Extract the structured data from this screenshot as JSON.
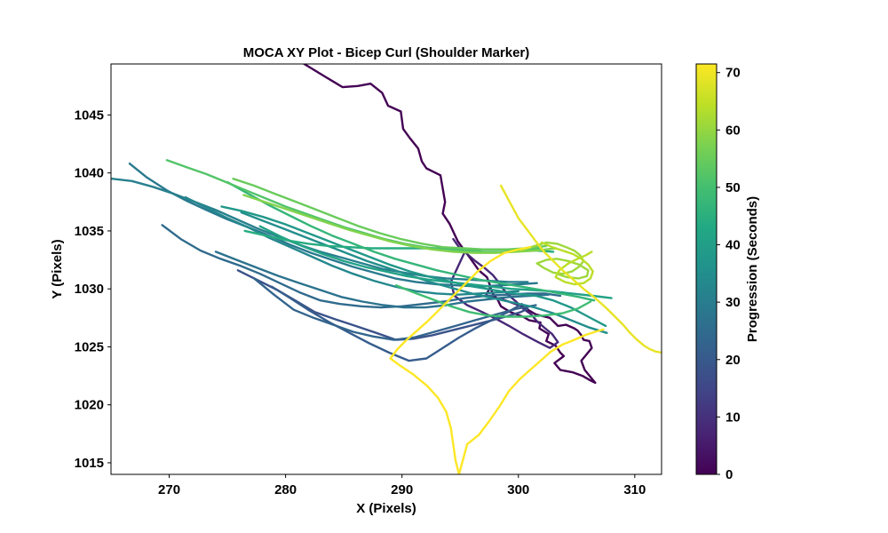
{
  "chart_data": {
    "type": "line",
    "title": "MOCA XY Plot - Bicep Curl (Shoulder Marker)",
    "xlabel": "X (Pixels)",
    "ylabel": "Y (Pixels)",
    "colorbar_label": "Progression (Seconds)",
    "xlim": [
      265,
      312.3
    ],
    "ylim": [
      1014,
      1049.4
    ],
    "x_ticks": [
      270,
      280,
      290,
      300,
      310
    ],
    "y_ticks": [
      1015,
      1020,
      1025,
      1030,
      1035,
      1040,
      1045
    ],
    "colorbar_lim": [
      0,
      71.5
    ],
    "colorbar_ticks": [
      0,
      10,
      20,
      30,
      40,
      50,
      60,
      70
    ],
    "colormap": "viridis",
    "grid": false,
    "series": [
      {
        "t": 0,
        "x": [
          281.6,
          283.4,
          284.9,
          286.2,
          287.3,
          288.3,
          288.8,
          289.9,
          290.1,
          290.6,
          291.4,
          291.7,
          292.1,
          293.3,
          293.7,
          293.5,
          294.1,
          294.8,
          295.3,
          295.9,
          296.6,
          297.3,
          297.6,
          297.2,
          298.6,
          300.3,
          301.5,
          302.7,
          303.4,
          304.1,
          304.8,
          305.1,
          305.4,
          305.6,
          306.1,
          306.3,
          305.9,
          305.4,
          305.7,
          306.6,
          306.2,
          305.5,
          304.7,
          303.6,
          303.1,
          303.9,
          303.6,
          303.2,
          302.4,
          302.6,
          301.8,
          301.9,
          300.9,
          300.4,
          299.3,
          298.5,
          298.2,
          297.8,
          297.6
        ],
        "y": [
          1049.4,
          1048.3,
          1047.4,
          1047.5,
          1047.7,
          1046.9,
          1045.8,
          1045.3,
          1043.8,
          1043.1,
          1042.1,
          1041.0,
          1040.4,
          1039.8,
          1037.5,
          1036.5,
          1035.6,
          1034.1,
          1033.4,
          1032.6,
          1031.6,
          1031.0,
          1030.2,
          1029.4,
          1029.1,
          1028.5,
          1027.8,
          1027.5,
          1026.8,
          1026.9,
          1026.6,
          1026.4,
          1026.0,
          1025.6,
          1025.5,
          1024.9,
          1024.4,
          1023.8,
          1023.0,
          1021.9,
          1022.1,
          1022.5,
          1022.8,
          1023.0,
          1023.6,
          1024.2,
          1024.5,
          1025.1,
          1025.5,
          1026.1,
          1026.6,
          1027.1,
          1027.3,
          1027.6,
          1028.0,
          1028.5,
          1029.1,
          1029.6,
          1030.1
        ]
      },
      {
        "t": 8,
        "x": [
          294.4,
          294.9,
          295.6,
          296.3,
          297.1,
          297.8,
          298.2,
          298.6,
          299.1,
          299.8,
          300.4,
          301.1,
          301.6,
          302.3,
          302.9,
          303.4,
          302.7,
          301.7,
          300.4,
          299.2,
          298.1,
          296.9,
          295.6,
          294.5,
          294.2,
          294.8,
          295.4
        ],
        "y": [
          1034.3,
          1033.6,
          1033.0,
          1032.4,
          1031.8,
          1031.2,
          1030.7,
          1030.1,
          1029.5,
          1028.9,
          1028.3,
          1027.8,
          1027.2,
          1026.6,
          1026.1,
          1025.4,
          1024.9,
          1025.4,
          1026.1,
          1026.8,
          1027.4,
          1028.0,
          1028.6,
          1029.4,
          1030.6,
          1031.9,
          1033.2
        ]
      },
      {
        "t": 18,
        "x": [
          275.9,
          277.5,
          279.3,
          281.0,
          282.5,
          284.2,
          286.0,
          287.8,
          289.5,
          291.0,
          292.6,
          294.2,
          295.8,
          297.4,
          298.9,
          300.2,
          300.8
        ],
        "y": [
          1031.6,
          1030.8,
          1029.9,
          1028.9,
          1028.0,
          1027.4,
          1026.8,
          1026.2,
          1025.6,
          1025.7,
          1026.0,
          1026.4,
          1026.8,
          1027.2,
          1027.6,
          1028.0,
          1028.3
        ]
      },
      {
        "t": 21,
        "x": [
          278.8,
          280.4,
          282.1,
          283.8,
          285.5,
          287.2,
          288.9,
          290.6,
          292.1,
          293.5,
          294.9,
          296.3,
          297.7,
          299.1,
          300.3
        ],
        "y": [
          1030.2,
          1029.2,
          1028.1,
          1027.1,
          1026.2,
          1025.3,
          1024.5,
          1023.8,
          1024.0,
          1024.9,
          1025.8,
          1026.6,
          1027.3,
          1028.0,
          1028.7
        ]
      },
      {
        "t": 23,
        "x": [
          277.3,
          279.0,
          280.7,
          282.4,
          284.1,
          285.8,
          287.5,
          289.3,
          291.0,
          292.8,
          294.6,
          296.3,
          298.1,
          299.9,
          301.5
        ],
        "y": [
          1030.9,
          1029.5,
          1028.2,
          1027.5,
          1026.9,
          1026.3,
          1025.9,
          1025.6,
          1025.8,
          1026.3,
          1026.8,
          1027.3,
          1027.8,
          1028.3,
          1028.6
        ]
      },
      {
        "t": 25,
        "x": [
          269.4,
          271.0,
          272.7,
          274.4,
          276.1,
          277.8,
          279.5,
          281.2,
          283.0,
          284.7,
          286.5,
          288.2,
          290.0,
          291.8,
          293.6,
          295.4,
          297.2,
          299.0,
          300.8,
          302.3,
          303.6
        ],
        "y": [
          1035.5,
          1034.3,
          1033.3,
          1032.6,
          1032.0,
          1031.3,
          1030.5,
          1029.7,
          1029.0,
          1028.7,
          1028.5,
          1028.4,
          1028.5,
          1028.7,
          1028.9,
          1029.2,
          1029.4,
          1029.5,
          1029.6,
          1029.6,
          1029.4
        ]
      },
      {
        "t": 27,
        "x": [
          274.0,
          275.8,
          277.6,
          279.4,
          281.2,
          283.0,
          284.8,
          286.6,
          288.4,
          290.2,
          292.0,
          293.8,
          295.6,
          297.4,
          299.2,
          301.0,
          302.6
        ],
        "y": [
          1033.2,
          1032.5,
          1031.8,
          1031.1,
          1030.5,
          1029.9,
          1029.3,
          1028.9,
          1028.6,
          1028.4,
          1028.4,
          1028.6,
          1028.9,
          1029.1,
          1029.3,
          1029.4,
          1029.5
        ]
      },
      {
        "t": 29,
        "x": [
          266.6,
          268.1,
          269.8,
          271.5,
          273.2,
          275.0,
          276.8,
          278.6,
          280.4,
          282.2,
          284.0,
          285.8,
          287.6,
          289.4,
          291.2,
          293.0,
          294.8,
          296.6,
          298.3,
          300.0,
          301.6
        ],
        "y": [
          1040.8,
          1039.6,
          1038.5,
          1037.6,
          1036.8,
          1036.0,
          1035.3,
          1034.6,
          1033.8,
          1033.1,
          1032.5,
          1031.9,
          1031.4,
          1030.9,
          1030.6,
          1030.4,
          1030.3,
          1030.2,
          1030.3,
          1030.4,
          1030.5
        ]
      },
      {
        "t": 31,
        "x": [
          265.1,
          266.8,
          268.6,
          270.4,
          272.2,
          274.0,
          275.8,
          277.6,
          279.4,
          281.2,
          283.0,
          284.8,
          286.6,
          288.4,
          290.2,
          292.0,
          293.8,
          295.6,
          297.4,
          299.2,
          300.8
        ],
        "y": [
          1039.5,
          1039.3,
          1038.8,
          1038.2,
          1037.5,
          1036.8,
          1036.0,
          1035.2,
          1034.5,
          1033.8,
          1033.2,
          1032.7,
          1032.2,
          1031.7,
          1031.4,
          1031.1,
          1030.9,
          1030.8,
          1030.7,
          1030.6,
          1030.6
        ]
      },
      {
        "t": 33,
        "x": [
          271.4,
          273.2,
          275.0,
          276.8,
          278.6,
          280.4,
          282.2,
          284.0,
          285.8,
          287.6,
          289.4,
          291.2,
          293.0,
          294.8,
          296.6,
          298.4,
          300.0
        ],
        "y": [
          1037.9,
          1037.0,
          1036.1,
          1035.3,
          1034.4,
          1033.6,
          1032.8,
          1032.0,
          1031.3,
          1030.7,
          1030.2,
          1029.8,
          1029.6,
          1029.5,
          1029.6,
          1029.7,
          1029.8
        ]
      },
      {
        "t": 35,
        "x": [
          276.2,
          278.0,
          279.8,
          281.6,
          283.4,
          285.2,
          287.0,
          288.8,
          290.6,
          292.4,
          294.2,
          296.0,
          297.8,
          299.6,
          301.4,
          303.0,
          304.5,
          306.0,
          307.6
        ],
        "y": [
          1036.6,
          1035.9,
          1035.2,
          1034.5,
          1033.8,
          1033.1,
          1032.4,
          1031.8,
          1031.2,
          1030.6,
          1030.1,
          1029.6,
          1029.2,
          1028.8,
          1028.4,
          1027.9,
          1027.3,
          1026.7,
          1026.2
        ]
      },
      {
        "t": 38,
        "x": [
          274.5,
          276.3,
          278.1,
          279.9,
          281.7,
          283.5,
          285.3,
          287.1,
          288.9,
          290.7,
          292.5,
          294.3,
          296.1,
          297.9,
          299.7,
          301.5,
          303.0,
          304.5,
          306.0,
          307.5
        ],
        "y": [
          1037.1,
          1036.7,
          1036.2,
          1035.6,
          1034.9,
          1034.2,
          1033.5,
          1032.8,
          1032.1,
          1031.5,
          1031.0,
          1030.6,
          1030.2,
          1029.9,
          1029.6,
          1029.4,
          1029.0,
          1028.4,
          1027.6,
          1026.8
        ]
      },
      {
        "t": 41,
        "x": [
          277.8,
          279.6,
          281.4,
          283.2,
          285.0,
          286.8,
          288.6,
          290.4,
          292.2,
          294.0,
          295.8,
          297.6,
          299.4,
          301.2,
          302.8,
          304.6,
          306.4,
          308.0
        ],
        "y": [
          1035.4,
          1034.5,
          1033.7,
          1033.0,
          1032.4,
          1031.9,
          1031.5,
          1031.1,
          1030.8,
          1030.6,
          1030.4,
          1030.2,
          1030.0,
          1029.9,
          1029.8,
          1029.6,
          1029.4,
          1029.2
        ]
      },
      {
        "t": 44,
        "x": [
          276.5,
          278.3,
          280.1,
          281.9,
          283.7,
          285.5,
          287.3,
          289.1,
          290.9,
          292.7,
          294.5,
          296.3,
          298.1,
          299.9,
          301.5,
          303.0
        ],
        "y": [
          1035.0,
          1034.6,
          1034.2,
          1033.9,
          1033.7,
          1033.6,
          1033.5,
          1033.5,
          1033.5,
          1033.5,
          1033.5,
          1033.4,
          1033.4,
          1033.4,
          1033.3,
          1033.2
        ]
      },
      {
        "t": 47,
        "x": [
          275.0,
          276.8,
          278.6,
          280.4,
          282.2,
          284.0,
          285.8,
          287.6,
          289.4,
          291.2,
          293.0,
          294.8,
          296.6,
          298.4,
          300.2,
          302.0,
          303.6,
          305.2,
          306.5
        ],
        "y": [
          1039.2,
          1038.2,
          1037.2,
          1036.3,
          1035.4,
          1034.6,
          1033.9,
          1033.2,
          1032.6,
          1032.1,
          1031.6,
          1031.2,
          1030.8,
          1030.5,
          1030.2,
          1029.9,
          1029.6,
          1029.3,
          1029.0
        ]
      },
      {
        "t": 49,
        "x": [
          289.5,
          291.0,
          292.6,
          294.2,
          295.8,
          297.4,
          299.0,
          300.6,
          302.2,
          303.8,
          305.1,
          306.2
        ],
        "y": [
          1030.3,
          1029.7,
          1029.1,
          1028.5,
          1028.0,
          1027.7,
          1027.6,
          1027.6,
          1027.7,
          1027.9,
          1028.3,
          1028.9
        ]
      },
      {
        "t": 52,
        "x": [
          269.8,
          271.5,
          273.2,
          274.9,
          276.6,
          278.3,
          280.0,
          281.7,
          283.4,
          285.1,
          286.8,
          288.5,
          290.2,
          291.9,
          293.6,
          295.3,
          297.0,
          298.7,
          300.4,
          302.0
        ],
        "y": [
          1041.1,
          1040.5,
          1039.9,
          1039.2,
          1038.5,
          1037.8,
          1037.1,
          1036.5,
          1035.9,
          1035.3,
          1034.8,
          1034.3,
          1033.9,
          1033.6,
          1033.4,
          1033.3,
          1033.2,
          1033.2,
          1033.3,
          1033.5
        ]
      },
      {
        "t": 55,
        "x": [
          275.5,
          277.3,
          279.1,
          280.9,
          282.7,
          284.5,
          286.3,
          288.1,
          289.9,
          291.7,
          293.5,
          295.3,
          297.1,
          298.9,
          300.7,
          302.4
        ],
        "y": [
          1039.5,
          1038.9,
          1038.2,
          1037.5,
          1036.8,
          1036.1,
          1035.4,
          1034.8,
          1034.3,
          1033.9,
          1033.6,
          1033.5,
          1033.4,
          1033.4,
          1033.5,
          1033.7
        ]
      },
      {
        "t": 58,
        "x": [
          276.4,
          278.2,
          280.0,
          281.8,
          283.6,
          285.4,
          287.2,
          289.0,
          290.8,
          292.6,
          294.4,
          296.2,
          298.0,
          299.8,
          301.6,
          303.2
        ],
        "y": [
          1038.1,
          1037.5,
          1036.9,
          1036.3,
          1035.7,
          1035.1,
          1034.6,
          1034.1,
          1033.7,
          1033.4,
          1033.2,
          1033.1,
          1033.1,
          1033.2,
          1033.3,
          1033.5
        ]
      },
      {
        "t": 61,
        "x": [
          300.2,
          301.4,
          302.4,
          303.3,
          304.1,
          304.8,
          305.3,
          305.6,
          305.2,
          304.6,
          303.8,
          303.0,
          302.2,
          301.6,
          302.4,
          303.3,
          304.3,
          305.2,
          306.0,
          305.9,
          305.2,
          304.2,
          303.3
        ],
        "y": [
          1033.3,
          1033.7,
          1034.0,
          1033.9,
          1033.6,
          1033.3,
          1032.9,
          1032.4,
          1031.9,
          1031.5,
          1031.3,
          1031.4,
          1031.8,
          1032.2,
          1032.5,
          1032.6,
          1032.4,
          1032.1,
          1031.6,
          1031.1,
          1030.9,
          1031.0,
          1031.3
        ]
      },
      {
        "t": 64,
        "x": [
          302.0,
          302.9,
          303.8,
          304.7,
          305.4,
          306.0,
          306.4,
          306.2,
          305.6,
          304.8,
          304.0,
          303.2,
          303.5,
          304.3,
          305.1,
          305.8,
          306.3
        ],
        "y": [
          1034.0,
          1033.6,
          1033.3,
          1033.0,
          1032.6,
          1032.1,
          1031.5,
          1030.9,
          1030.5,
          1030.4,
          1030.6,
          1031.0,
          1031.6,
          1032.2,
          1032.6,
          1032.9,
          1033.2
        ]
      },
      {
        "t": 69,
        "x": [
          298.5,
          299.3,
          300.0,
          300.9,
          301.5,
          302.2,
          303.0,
          303.8,
          304.7,
          305.6,
          306.6,
          307.5,
          308.3,
          309.0,
          309.6,
          310.2,
          310.8,
          311.3,
          311.8,
          312.3
        ],
        "y": [
          1038.9,
          1037.4,
          1036.1,
          1034.9,
          1034.1,
          1033.2,
          1032.4,
          1031.6,
          1030.8,
          1030.0,
          1029.2,
          1028.4,
          1027.6,
          1026.9,
          1026.2,
          1025.6,
          1025.1,
          1024.8,
          1024.6,
          1024.5
        ]
      },
      {
        "t": 71.5,
        "x": [
          301.0,
          300.0,
          298.8,
          297.6,
          296.5,
          295.5,
          294.6,
          293.8,
          293.0,
          292.2,
          291.3,
          290.4,
          289.6,
          289.0,
          289.8,
          291.0,
          292.2,
          293.1,
          293.8,
          294.2,
          294.4,
          294.6,
          294.9,
          295.6,
          296.6,
          297.5,
          298.4,
          299.2,
          300.1,
          301.0,
          301.9,
          302.8,
          303.8,
          304.8,
          305.7,
          306.6,
          307.3
        ],
        "y": [
          1033.6,
          1033.4,
          1033.1,
          1032.4,
          1031.5,
          1030.5,
          1029.6,
          1028.8,
          1028.0,
          1027.2,
          1026.4,
          1025.6,
          1024.8,
          1024.0,
          1023.4,
          1022.6,
          1021.6,
          1020.6,
          1019.4,
          1018.0,
          1016.6,
          1015.2,
          1014.0,
          1016.6,
          1017.4,
          1018.6,
          1019.9,
          1021.2,
          1022.2,
          1023.0,
          1023.8,
          1024.6,
          1025.2,
          1025.6,
          1026.0,
          1026.3,
          1026.5
        ]
      }
    ]
  }
}
